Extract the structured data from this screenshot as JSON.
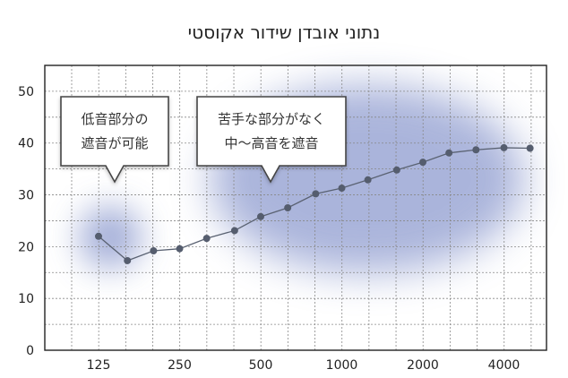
{
  "chart_data": {
    "type": "line",
    "title": "נתוני אובדן שידור אקוסטי",
    "xlabel": "",
    "ylabel": "",
    "x_scale": "log",
    "x_tick_labels": [
      "125",
      "250",
      "500",
      "1000",
      "2000",
      "4000"
    ],
    "y_ticks": [
      0,
      10,
      20,
      30,
      40,
      50
    ],
    "ylim": [
      0,
      55
    ],
    "grid": true,
    "series": [
      {
        "x": [
          125,
          160,
          200,
          250,
          315,
          400,
          500,
          630,
          800,
          1000,
          1250,
          1600,
          2000,
          2500,
          3150,
          4000,
          5000
        ],
        "values": [
          22,
          17.3,
          19.2,
          19.6,
          21.6,
          23.1,
          25.8,
          27.5,
          30.2,
          31.3,
          32.9,
          34.8,
          36.3,
          38.1,
          38.7,
          39.1,
          39.0
        ]
      }
    ],
    "colors": {
      "line": "#5a6272",
      "point": "#555d6e",
      "highlight": "#8795cc",
      "grid": "#888888"
    },
    "annotations": [
      {
        "line1": "低音部分の",
        "line2": "遮音が可能"
      },
      {
        "line1": "苦手な部分がなく",
        "line2": "中〜高音を遮音"
      }
    ]
  }
}
